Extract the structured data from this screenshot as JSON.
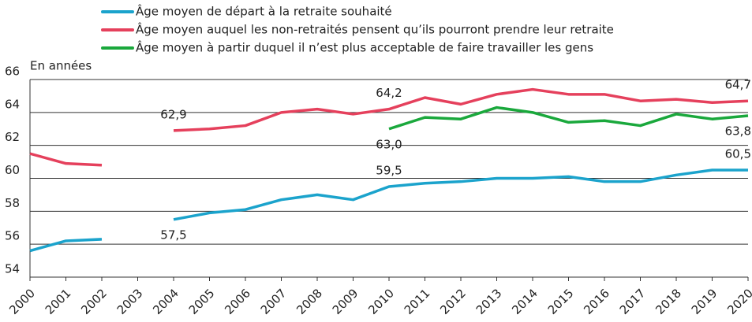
{
  "chart_data": {
    "type": "line",
    "y_label": "En années",
    "categories": [
      "2000",
      "2001",
      "2002",
      "2003",
      "2004",
      "2005",
      "2006",
      "2007",
      "2008",
      "2009",
      "2010",
      "2011",
      "2012",
      "2013",
      "2014",
      "2015",
      "2016",
      "2017",
      "2018",
      "2019",
      "2020"
    ],
    "series": [
      {
        "name": "Âge moyen de départ à la retraite souhaité",
        "color": "#1ba3cc",
        "values": [
          55.6,
          56.2,
          56.3,
          null,
          57.5,
          57.9,
          58.1,
          58.7,
          59.0,
          58.7,
          59.5,
          59.7,
          59.8,
          60.0,
          60.0,
          60.1,
          59.8,
          59.8,
          60.2,
          60.5,
          60.5
        ],
        "value_labels": [
          null,
          null,
          null,
          null,
          "57,5",
          null,
          null,
          null,
          null,
          null,
          "59,5",
          null,
          null,
          null,
          null,
          null,
          null,
          null,
          null,
          null,
          "60,5"
        ]
      },
      {
        "name": "Âge moyen auquel les non-retraités pensent qu’ils pourront prendre leur retraite",
        "color": "#e5405c",
        "values": [
          61.5,
          60.9,
          60.8,
          null,
          62.9,
          63.0,
          63.2,
          64.0,
          64.2,
          63.9,
          64.2,
          64.9,
          64.5,
          65.1,
          65.4,
          65.1,
          65.1,
          64.7,
          64.8,
          64.6,
          64.7
        ],
        "value_labels": [
          null,
          null,
          null,
          null,
          "62,9",
          null,
          null,
          null,
          null,
          null,
          "64,2",
          null,
          null,
          null,
          null,
          null,
          null,
          null,
          null,
          null,
          "64,7"
        ]
      },
      {
        "name": "Âge moyen à partir duquel il n’est plus acceptable de faire travailler les gens",
        "color": "#1aa83c",
        "values": [
          null,
          null,
          null,
          null,
          null,
          null,
          null,
          null,
          null,
          null,
          63.0,
          63.7,
          63.6,
          64.3,
          64.0,
          63.4,
          63.5,
          63.2,
          63.9,
          63.6,
          63.8
        ],
        "value_labels": [
          null,
          null,
          null,
          null,
          null,
          null,
          null,
          null,
          null,
          null,
          "63,0",
          null,
          null,
          null,
          null,
          null,
          null,
          null,
          null,
          null,
          "63,8"
        ]
      }
    ],
    "ylim": [
      54,
      66
    ],
    "yticks": [
      54,
      56,
      58,
      60,
      62,
      64,
      66
    ],
    "grid": true,
    "legend": "top"
  }
}
